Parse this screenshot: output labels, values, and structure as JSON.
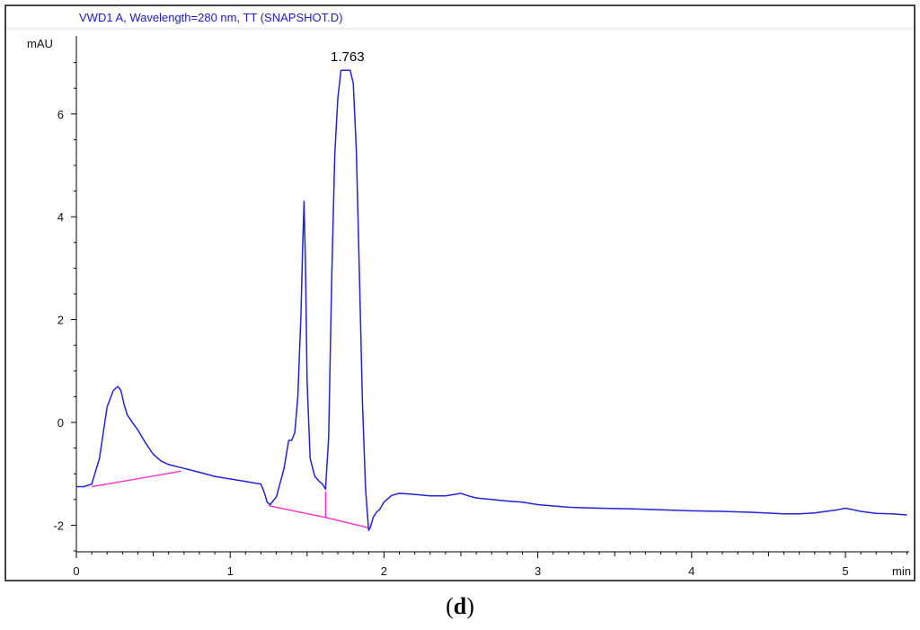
{
  "header": {
    "text": "VWD1 A, Wavelength=280 nm, TT (SNAPSHOT.D)"
  },
  "panel_caption": {
    "open": "(",
    "letter": "d",
    "close": ")"
  },
  "colors": {
    "signal": "#2323d4",
    "baseline": "#ff33cc",
    "axis": "#000000",
    "header": "#1c1cc8",
    "frame": "#444444"
  },
  "chart_data": {
    "type": "line",
    "title": "VWD1 A, Wavelength=280 nm, TT (SNAPSHOT.D)",
    "xlabel": "min",
    "ylabel": "mAU",
    "xlim": [
      0,
      5.4
    ],
    "ylim": [
      -2.5,
      7.5
    ],
    "x_ticks": [
      0,
      1,
      2,
      3,
      4,
      5
    ],
    "y_ticks": [
      -2,
      0,
      2,
      4,
      6
    ],
    "grid": false,
    "peak_annotations": [
      {
        "label": "1.763",
        "x": 1.763,
        "y": 6.85
      }
    ],
    "series": [
      {
        "x": [
          0.0,
          0.05,
          0.1,
          0.15,
          0.2,
          0.24,
          0.27,
          0.29,
          0.31,
          0.33,
          0.36,
          0.4,
          0.45,
          0.5,
          0.55,
          0.6,
          0.68,
          0.8,
          0.9,
          1.0,
          1.1,
          1.2,
          1.22,
          1.24,
          1.26,
          1.3,
          1.35,
          1.38,
          1.4,
          1.42,
          1.44,
          1.46,
          1.47,
          1.48,
          1.49,
          1.5,
          1.52,
          1.55,
          1.58,
          1.6,
          1.62,
          1.64,
          1.66,
          1.68,
          1.7,
          1.72,
          1.74,
          1.76,
          1.763,
          1.78,
          1.8,
          1.82,
          1.84,
          1.86,
          1.88,
          1.9,
          1.91,
          1.93,
          1.95,
          1.97,
          2.0,
          2.05,
          2.1,
          2.2,
          2.3,
          2.4,
          2.5,
          2.55,
          2.6,
          2.7,
          2.8,
          2.9,
          3.0,
          3.2,
          3.4,
          3.6,
          3.8,
          4.0,
          4.2,
          4.4,
          4.6,
          4.7,
          4.8,
          4.9,
          4.95,
          5.0,
          5.05,
          5.1,
          5.2,
          5.3,
          5.4
        ],
        "y": [
          -1.25,
          -1.25,
          -1.2,
          -0.7,
          0.3,
          0.62,
          0.7,
          0.62,
          0.35,
          0.15,
          0.02,
          -0.15,
          -0.4,
          -0.62,
          -0.75,
          -0.82,
          -0.88,
          -0.97,
          -1.05,
          -1.1,
          -1.15,
          -1.2,
          -1.35,
          -1.55,
          -1.6,
          -1.45,
          -0.9,
          -0.35,
          -0.35,
          -0.2,
          0.5,
          2.1,
          3.3,
          4.3,
          3.0,
          0.8,
          -0.7,
          -1.05,
          -1.15,
          -1.2,
          -1.3,
          -0.3,
          2.8,
          5.2,
          6.3,
          6.85,
          6.85,
          6.85,
          6.85,
          6.85,
          6.6,
          5.3,
          2.9,
          0.4,
          -1.3,
          -2.1,
          -2.05,
          -1.85,
          -1.75,
          -1.7,
          -1.55,
          -1.42,
          -1.38,
          -1.4,
          -1.43,
          -1.43,
          -1.38,
          -1.43,
          -1.47,
          -1.5,
          -1.53,
          -1.55,
          -1.6,
          -1.65,
          -1.67,
          -1.68,
          -1.7,
          -1.72,
          -1.73,
          -1.75,
          -1.78,
          -1.78,
          -1.76,
          -1.72,
          -1.7,
          -1.67,
          -1.7,
          -1.73,
          -1.77,
          -1.78,
          -1.8
        ]
      }
    ],
    "integration_baselines": [
      {
        "x1": 0.1,
        "y1": -1.25,
        "x2": 0.68,
        "y2": -0.95
      },
      {
        "x1": 1.25,
        "y1": -1.62,
        "x2": 1.62,
        "y2": -1.85
      },
      {
        "x1": 1.62,
        "y1": -1.85,
        "x2": 1.9,
        "y2": -2.05
      }
    ],
    "integration_markers": [
      {
        "x": 1.62,
        "y_from": -1.35,
        "y_to": -1.85
      }
    ]
  }
}
